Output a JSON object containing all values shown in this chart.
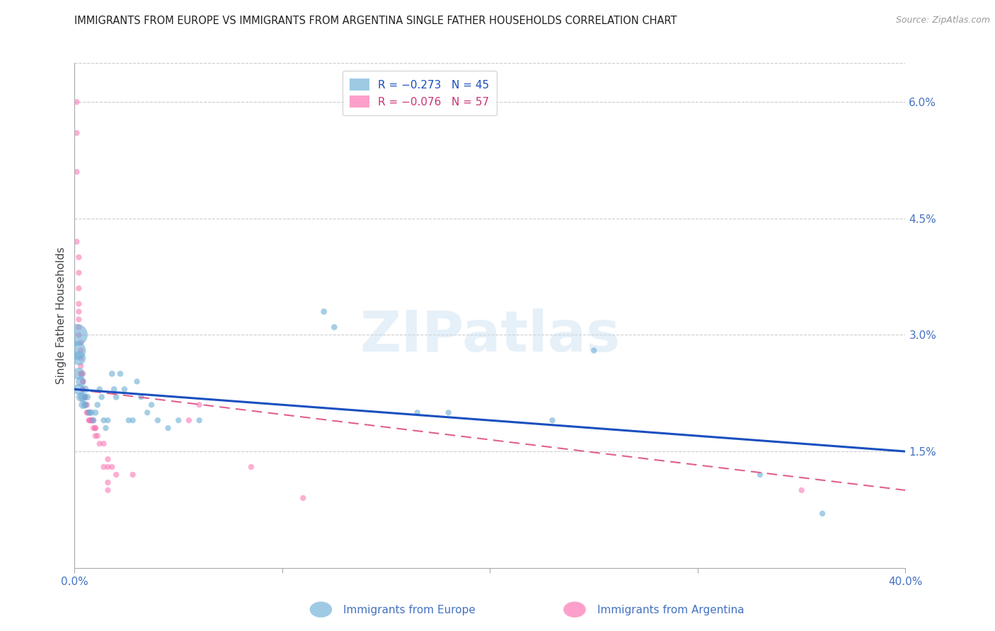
{
  "title": "IMMIGRANTS FROM EUROPE VS IMMIGRANTS FROM ARGENTINA SINGLE FATHER HOUSEHOLDS CORRELATION CHART",
  "source": "Source: ZipAtlas.com",
  "ylabel": "Single Father Households",
  "right_yticks": [
    "6.0%",
    "4.5%",
    "3.0%",
    "1.5%"
  ],
  "right_ytick_vals": [
    0.06,
    0.045,
    0.03,
    0.015
  ],
  "europe_color": "#6baed6",
  "argentina_color": "#fb6eb0",
  "europe_line_color": "#1a4fbf",
  "argentina_line_color": "#e06090",
  "watermark": "ZIPatlas",
  "xlim": [
    0.0,
    0.4
  ],
  "ylim": [
    0.0,
    0.065
  ],
  "europe_trend": [
    0.023,
    0.015
  ],
  "argentina_trend": [
    0.023,
    0.01
  ],
  "europe_points": [
    [
      0.001,
      0.03,
      500
    ],
    [
      0.001,
      0.028,
      350
    ],
    [
      0.002,
      0.027,
      200
    ],
    [
      0.002,
      0.025,
      150
    ],
    [
      0.002,
      0.023,
      120
    ],
    [
      0.003,
      0.024,
      100
    ],
    [
      0.003,
      0.022,
      90
    ],
    [
      0.004,
      0.022,
      80
    ],
    [
      0.004,
      0.021,
      70
    ],
    [
      0.005,
      0.023,
      60
    ],
    [
      0.005,
      0.021,
      55
    ],
    [
      0.006,
      0.022,
      50
    ],
    [
      0.007,
      0.02,
      45
    ],
    [
      0.008,
      0.02,
      45
    ],
    [
      0.009,
      0.019,
      40
    ],
    [
      0.01,
      0.02,
      40
    ],
    [
      0.011,
      0.021,
      38
    ],
    [
      0.012,
      0.023,
      38
    ],
    [
      0.013,
      0.022,
      38
    ],
    [
      0.014,
      0.019,
      38
    ],
    [
      0.015,
      0.018,
      36
    ],
    [
      0.016,
      0.019,
      36
    ],
    [
      0.018,
      0.025,
      40
    ],
    [
      0.019,
      0.023,
      40
    ],
    [
      0.02,
      0.022,
      40
    ],
    [
      0.022,
      0.025,
      38
    ],
    [
      0.024,
      0.023,
      38
    ],
    [
      0.026,
      0.019,
      36
    ],
    [
      0.028,
      0.019,
      36
    ],
    [
      0.03,
      0.024,
      36
    ],
    [
      0.032,
      0.022,
      36
    ],
    [
      0.035,
      0.02,
      36
    ],
    [
      0.037,
      0.021,
      36
    ],
    [
      0.04,
      0.019,
      36
    ],
    [
      0.045,
      0.018,
      36
    ],
    [
      0.05,
      0.019,
      36
    ],
    [
      0.06,
      0.019,
      36
    ],
    [
      0.12,
      0.033,
      40
    ],
    [
      0.125,
      0.031,
      38
    ],
    [
      0.165,
      0.02,
      36
    ],
    [
      0.18,
      0.02,
      36
    ],
    [
      0.23,
      0.019,
      36
    ],
    [
      0.25,
      0.028,
      38
    ],
    [
      0.33,
      0.012,
      36
    ],
    [
      0.36,
      0.007,
      36
    ]
  ],
  "argentina_points": [
    [
      0.001,
      0.06,
      36
    ],
    [
      0.001,
      0.056,
      36
    ],
    [
      0.001,
      0.051,
      36
    ],
    [
      0.001,
      0.042,
      36
    ],
    [
      0.002,
      0.04,
      36
    ],
    [
      0.002,
      0.038,
      36
    ],
    [
      0.002,
      0.036,
      36
    ],
    [
      0.002,
      0.034,
      36
    ],
    [
      0.002,
      0.033,
      36
    ],
    [
      0.002,
      0.032,
      36
    ],
    [
      0.002,
      0.031,
      36
    ],
    [
      0.002,
      0.03,
      36
    ],
    [
      0.003,
      0.029,
      36
    ],
    [
      0.003,
      0.028,
      36
    ],
    [
      0.003,
      0.027,
      36
    ],
    [
      0.003,
      0.026,
      36
    ],
    [
      0.003,
      0.025,
      36
    ],
    [
      0.003,
      0.025,
      36
    ],
    [
      0.004,
      0.025,
      36
    ],
    [
      0.004,
      0.024,
      36
    ],
    [
      0.004,
      0.024,
      36
    ],
    [
      0.004,
      0.023,
      36
    ],
    [
      0.004,
      0.023,
      36
    ],
    [
      0.005,
      0.022,
      36
    ],
    [
      0.005,
      0.022,
      36
    ],
    [
      0.005,
      0.022,
      36
    ],
    [
      0.005,
      0.021,
      36
    ],
    [
      0.006,
      0.021,
      36
    ],
    [
      0.006,
      0.02,
      36
    ],
    [
      0.006,
      0.02,
      36
    ],
    [
      0.007,
      0.02,
      36
    ],
    [
      0.007,
      0.019,
      36
    ],
    [
      0.007,
      0.019,
      36
    ],
    [
      0.008,
      0.019,
      36
    ],
    [
      0.008,
      0.019,
      36
    ],
    [
      0.008,
      0.019,
      36
    ],
    [
      0.009,
      0.019,
      36
    ],
    [
      0.009,
      0.018,
      36
    ],
    [
      0.01,
      0.018,
      36
    ],
    [
      0.01,
      0.018,
      36
    ],
    [
      0.01,
      0.017,
      36
    ],
    [
      0.011,
      0.017,
      36
    ],
    [
      0.012,
      0.016,
      36
    ],
    [
      0.014,
      0.016,
      36
    ],
    [
      0.014,
      0.013,
      36
    ],
    [
      0.016,
      0.014,
      36
    ],
    [
      0.016,
      0.013,
      36
    ],
    [
      0.016,
      0.011,
      36
    ],
    [
      0.016,
      0.01,
      36
    ],
    [
      0.018,
      0.013,
      36
    ],
    [
      0.02,
      0.012,
      36
    ],
    [
      0.028,
      0.012,
      36
    ],
    [
      0.055,
      0.019,
      36
    ],
    [
      0.06,
      0.021,
      36
    ],
    [
      0.085,
      0.013,
      36
    ],
    [
      0.11,
      0.009,
      36
    ],
    [
      0.35,
      0.01,
      36
    ]
  ]
}
